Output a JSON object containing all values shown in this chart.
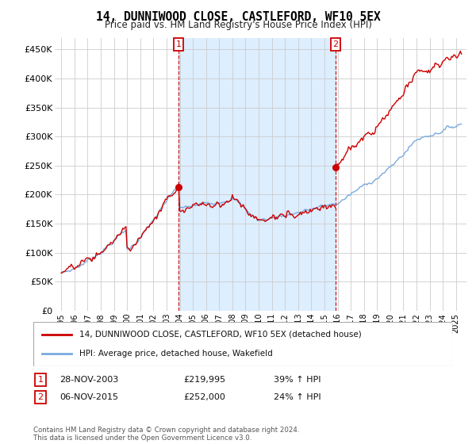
{
  "title": "14, DUNNIWOOD CLOSE, CASTLEFORD, WF10 5EX",
  "subtitle": "Price paid vs. HM Land Registry's House Price Index (HPI)",
  "legend_line1": "14, DUNNIWOOD CLOSE, CASTLEFORD, WF10 5EX (detached house)",
  "legend_line2": "HPI: Average price, detached house, Wakefield",
  "sale1_label": "1",
  "sale1_date": "28-NOV-2003",
  "sale1_price": "£219,995",
  "sale1_hpi": "39% ↑ HPI",
  "sale1_year": 2003.9,
  "sale1_value": 219995,
  "sale2_label": "2",
  "sale2_date": "06-NOV-2015",
  "sale2_price": "£252,000",
  "sale2_hpi": "24% ↑ HPI",
  "sale2_year": 2015.85,
  "sale2_value": 252000,
  "footer": "Contains HM Land Registry data © Crown copyright and database right 2024.\nThis data is licensed under the Open Government Licence v3.0.",
  "red_color": "#cc0000",
  "blue_color": "#7aaadd",
  "shade_color": "#ddeeff",
  "dashed_color": "#cc0000",
  "ylim": [
    0,
    470000
  ],
  "xlim_start": 1994.5,
  "xlim_end": 2025.8,
  "yticks": [
    0,
    50000,
    100000,
    150000,
    200000,
    250000,
    300000,
    350000,
    400000,
    450000
  ],
  "ytick_labels": [
    "£0",
    "£50K",
    "£100K",
    "£150K",
    "£200K",
    "£250K",
    "£300K",
    "£350K",
    "£400K",
    "£450K"
  ],
  "xtick_years": [
    1995,
    1996,
    1997,
    1998,
    1999,
    2000,
    2001,
    2002,
    2003,
    2004,
    2005,
    2006,
    2007,
    2008,
    2009,
    2010,
    2011,
    2012,
    2013,
    2014,
    2015,
    2016,
    2017,
    2018,
    2019,
    2020,
    2021,
    2022,
    2023,
    2024,
    2025
  ]
}
